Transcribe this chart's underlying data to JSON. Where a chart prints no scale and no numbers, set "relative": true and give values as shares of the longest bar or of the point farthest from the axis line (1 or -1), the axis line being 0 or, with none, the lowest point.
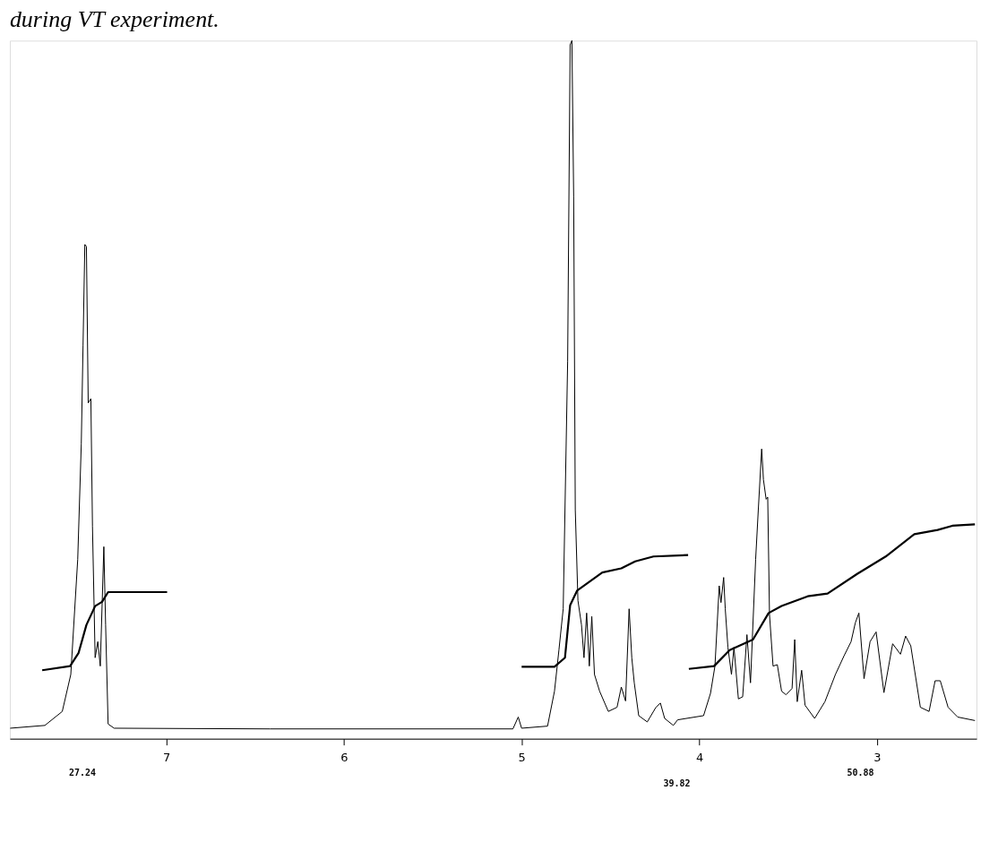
{
  "chart_data": {
    "type": "line",
    "title": "during VT experiment.",
    "relative": true,
    "xlim": [
      7.88,
      2.44
    ],
    "xticks": [
      7,
      6,
      5,
      4,
      3
    ],
    "tick_labels": "x",
    "grid": false,
    "marker": "none",
    "line_style": "solid",
    "series": [
      {
        "color": "#000000",
        "x": [
          7.878,
          7.683,
          7.585,
          7.537,
          7.498,
          7.478,
          7.468,
          7.458,
          7.449,
          7.439,
          7.424,
          7.415,
          7.4,
          7.385,
          7.371,
          7.351,
          7.341,
          7.327,
          7.293,
          6.415,
          5.049,
          5.019,
          5.0,
          4.854,
          4.815,
          4.79,
          4.766,
          4.741,
          4.727,
          4.717,
          4.707,
          4.698,
          4.683,
          4.663,
          4.649,
          4.634,
          4.619,
          4.605,
          4.59,
          4.561,
          4.512,
          4.463,
          4.439,
          4.415,
          4.395,
          4.38,
          4.366,
          4.341,
          4.293,
          4.244,
          4.219,
          4.195,
          4.146,
          4.122,
          3.976,
          3.937,
          3.912,
          3.888,
          3.878,
          3.863,
          3.854,
          3.839,
          3.819,
          3.805,
          3.78,
          3.756,
          3.732,
          3.712,
          3.683,
          3.668,
          3.649,
          3.639,
          3.624,
          3.615,
          3.605,
          3.585,
          3.561,
          3.537,
          3.512,
          3.478,
          3.463,
          3.449,
          3.424,
          3.405,
          3.351,
          3.293,
          3.234,
          3.185,
          3.146,
          3.122,
          3.102,
          3.073,
          3.039,
          3.005,
          2.961,
          2.912,
          2.868,
          2.839,
          2.81,
          2.756,
          2.707,
          2.673,
          2.644,
          2.6,
          2.546,
          2.449
        ],
        "values": [
          0.015,
          0.019,
          0.039,
          0.092,
          0.257,
          0.422,
          0.564,
          0.708,
          0.705,
          0.481,
          0.487,
          0.304,
          0.116,
          0.139,
          0.104,
          0.275,
          0.163,
          0.021,
          0.015,
          0.014,
          0.014,
          0.031,
          0.015,
          0.018,
          0.068,
          0.127,
          0.186,
          0.54,
          0.994,
          1.0,
          0.776,
          0.328,
          0.198,
          0.163,
          0.116,
          0.18,
          0.104,
          0.175,
          0.092,
          0.068,
          0.039,
          0.045,
          0.074,
          0.054,
          0.186,
          0.116,
          0.08,
          0.033,
          0.024,
          0.045,
          0.051,
          0.029,
          0.019,
          0.027,
          0.033,
          0.065,
          0.104,
          0.219,
          0.195,
          0.231,
          0.186,
          0.131,
          0.092,
          0.131,
          0.057,
          0.06,
          0.149,
          0.08,
          0.257,
          0.328,
          0.415,
          0.371,
          0.343,
          0.346,
          0.178,
          0.104,
          0.106,
          0.068,
          0.063,
          0.072,
          0.142,
          0.053,
          0.098,
          0.048,
          0.029,
          0.053,
          0.092,
          0.119,
          0.139,
          0.166,
          0.18,
          0.086,
          0.139,
          0.153,
          0.066,
          0.136,
          0.121,
          0.147,
          0.133,
          0.045,
          0.039,
          0.083,
          0.083,
          0.045,
          0.031,
          0.026
        ]
      },
      {
        "color": "#000000",
        "x": [
          7.698,
          7.541,
          7.493,
          7.449,
          7.4,
          7.361,
          7.327,
          6.995
        ],
        "values": [
          0.098,
          0.104,
          0.123,
          0.163,
          0.19,
          0.196,
          0.21,
          0.21
        ]
      },
      {
        "color": "#000000",
        "x": [
          5.0,
          4.815,
          4.756,
          4.727,
          4.688,
          4.546,
          4.439,
          4.361,
          4.258,
          4.063
        ],
        "values": [
          0.103,
          0.103,
          0.116,
          0.191,
          0.212,
          0.238,
          0.244,
          0.254,
          0.261,
          0.263
        ]
      },
      {
        "color": "#000000",
        "x": [
          4.059,
          3.917,
          3.829,
          3.698,
          3.61,
          3.537,
          3.39,
          3.278,
          3.112,
          2.951,
          2.79,
          2.659,
          2.576,
          2.449
        ],
        "values": [
          0.1,
          0.104,
          0.127,
          0.142,
          0.18,
          0.19,
          0.204,
          0.208,
          0.236,
          0.261,
          0.293,
          0.299,
          0.305,
          0.307
        ]
      }
    ],
    "annotations": [
      "27.24",
      "39.82",
      "50.88"
    ]
  }
}
